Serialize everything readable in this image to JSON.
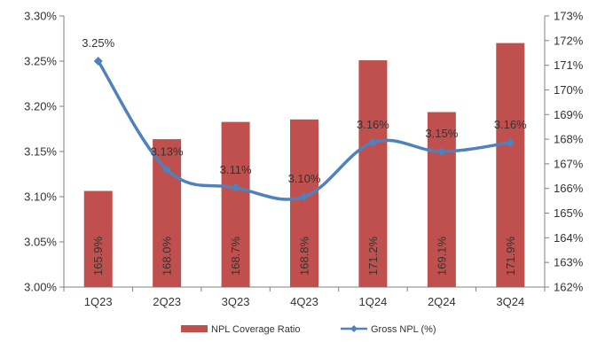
{
  "chart_data": {
    "type": "bar",
    "categories": [
      "1Q23",
      "2Q23",
      "3Q23",
      "4Q23",
      "1Q24",
      "2Q24",
      "3Q24"
    ],
    "series": [
      {
        "name": "NPL Coverage Ratio",
        "type": "bar",
        "axis": "right",
        "color": "#c0504d",
        "values": [
          165.9,
          168.0,
          168.7,
          168.8,
          171.2,
          169.1,
          171.9
        ],
        "labels": [
          "165.9%",
          "168.0%",
          "168.7%",
          "168.8%",
          "171.2%",
          "169.1%",
          "171.9%"
        ]
      },
      {
        "name": "Gross NPL (%)",
        "type": "line",
        "axis": "left",
        "color": "#4f81bd",
        "values": [
          3.25,
          3.13,
          3.11,
          3.1,
          3.16,
          3.15,
          3.16
        ],
        "labels": [
          "3.25%",
          "3.13%",
          "3.11%",
          "3.10%",
          "3.16%",
          "3.15%",
          "3.16%"
        ]
      }
    ],
    "left_axis": {
      "ylim": [
        3.0,
        3.3
      ],
      "ticks": [
        "3.00%",
        "3.05%",
        "3.10%",
        "3.15%",
        "3.20%",
        "3.25%",
        "3.30%"
      ]
    },
    "right_axis": {
      "ylim": [
        162,
        173
      ],
      "ticks": [
        "162%",
        "163%",
        "164%",
        "165%",
        "166%",
        "167%",
        "168%",
        "169%",
        "170%",
        "171%",
        "172%",
        "173%"
      ]
    },
    "grid": false,
    "legend_position": "bottom"
  }
}
